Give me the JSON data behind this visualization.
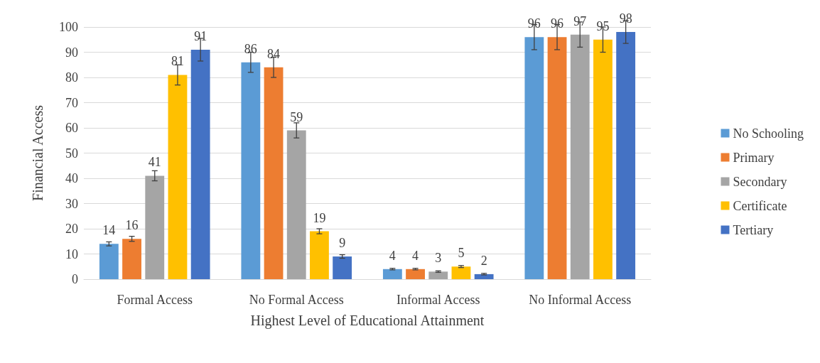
{
  "chart_data": {
    "type": "bar",
    "xlabel": "Highest Level of Educational Attainment",
    "ylabel": "Financial Access",
    "categories": [
      "Formal Access",
      "No Formal Access",
      "Informal Access",
      "No Informal Access"
    ],
    "series": [
      {
        "name": "No Schooling",
        "color": "#5b9bd5",
        "values": [
          14,
          86,
          4,
          96
        ],
        "errors": [
          0.8,
          4,
          0.3,
          5
        ]
      },
      {
        "name": "Primary",
        "color": "#ed7d31",
        "values": [
          16,
          84,
          4,
          96
        ],
        "errors": [
          1,
          4,
          0.3,
          5
        ]
      },
      {
        "name": "Secondary",
        "color": "#a5a5a5",
        "values": [
          41,
          59,
          3,
          97
        ],
        "errors": [
          2,
          3,
          0.3,
          5
        ]
      },
      {
        "name": "Certificate",
        "color": "#ffc000",
        "values": [
          81,
          19,
          5,
          95
        ],
        "errors": [
          4,
          1,
          0.4,
          5
        ]
      },
      {
        "name": "Tertiary",
        "color": "#4472c4",
        "values": [
          91,
          9,
          2,
          98
        ],
        "errors": [
          4.5,
          0.7,
          0.3,
          4.5
        ]
      }
    ],
    "ylim": [
      0,
      100
    ],
    "yticks": [
      0,
      10,
      20,
      30,
      40,
      50,
      60,
      70,
      80,
      90,
      100
    ],
    "grid": "y",
    "legend": "right",
    "data_labels": true
  }
}
